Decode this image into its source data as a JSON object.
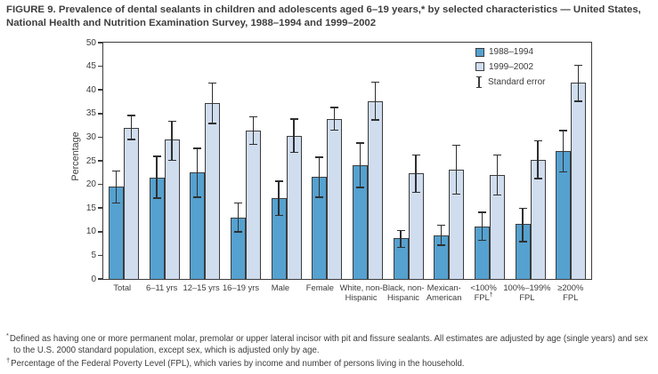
{
  "figure": {
    "title": "FIGURE 9. Prevalence of dental sealants in children and adolescents aged 6–19 years,* by selected characteristics — United States, National Health and Nutrition Examination Survey, 1988–1994 and 1999–2002",
    "footnotes": [
      {
        "marker": "*",
        "text": "Defined as having one or more permanent molar, premolar or upper lateral incisor with pit and fissure sealants. All estimates are adjusted by age (single years) and sex to the U.S. 2000 standard population, except sex, which is adjusted only by age."
      },
      {
        "marker": "†",
        "text": "Percentage of the Federal Poverty Level (FPL), which varies by income and number of persons living in the household."
      }
    ]
  },
  "chart_data": {
    "type": "bar",
    "title": "Prevalence of dental sealants in children and adolescents aged 6–19 years, 1988–1994 and 1999–2002",
    "xlabel": "",
    "ylabel": "Percentage",
    "ylim": [
      0,
      50
    ],
    "ytick_step": 5,
    "grid": false,
    "legend_position": "top-right-inside",
    "error_legend_label": "Standard error",
    "categories": [
      "Total",
      "6–11 yrs",
      "12–15 yrs",
      "16–19 yrs",
      "Male",
      "Female",
      "White, non-\nHispanic",
      "Black, non-\nHispanic",
      "Mexican-\nAmerican",
      "<100%\nFPL†",
      "100%–199%\nFPL",
      "≥200%\nFPL"
    ],
    "series": [
      {
        "name": "1988–1994",
        "color": "#55A1CF",
        "values": [
          19.5,
          21.5,
          22.6,
          13.0,
          17.1,
          21.7,
          24.1,
          8.6,
          9.3,
          11.0,
          11.6,
          27.1
        ],
        "err_low": [
          16.0,
          17.0,
          17.2,
          9.8,
          13.3,
          17.2,
          19.2,
          6.5,
          7.0,
          8.1,
          7.8,
          22.5
        ],
        "err_high": [
          23.0,
          26.1,
          27.8,
          16.2,
          20.8,
          25.9,
          28.9,
          10.4,
          11.5,
          14.2,
          15.1,
          31.5
        ]
      },
      {
        "name": "1999–2002",
        "color": "#D0DDEF",
        "values": [
          32.0,
          29.5,
          37.3,
          31.3,
          30.3,
          33.9,
          37.6,
          22.4,
          23.2,
          22.0,
          25.2,
          41.5
        ],
        "err_low": [
          29.4,
          25.0,
          32.8,
          28.3,
          26.7,
          31.4,
          33.5,
          18.2,
          17.8,
          17.6,
          21.1,
          37.5
        ],
        "err_high": [
          34.7,
          33.5,
          41.6,
          34.4,
          34.0,
          36.4,
          41.8,
          26.4,
          28.4,
          26.3,
          29.4,
          45.3
        ]
      }
    ]
  }
}
